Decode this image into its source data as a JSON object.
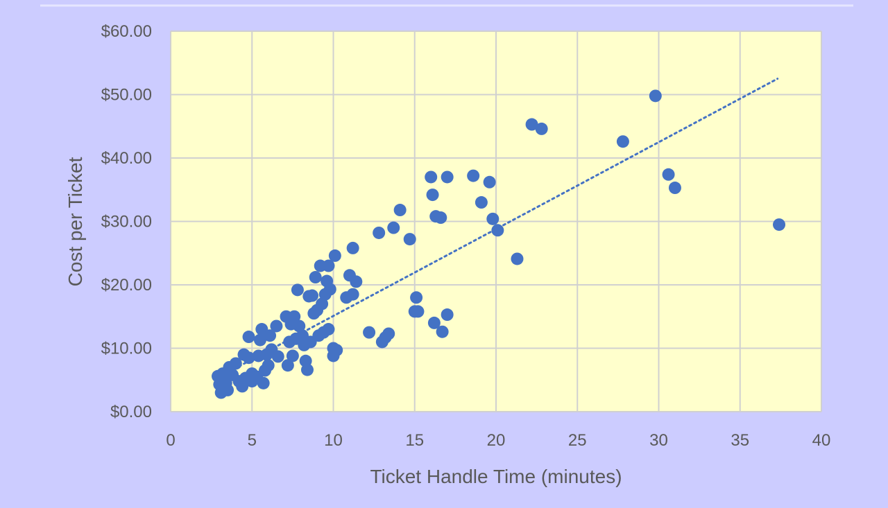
{
  "chart_data": {
    "type": "scatter",
    "title": "",
    "xlabel": "Ticket Handle Time (minutes)",
    "ylabel": "Cost per Ticket",
    "xlim": [
      0,
      40
    ],
    "ylim": [
      0,
      60
    ],
    "x_ticks": [
      "0",
      "5",
      "10",
      "15",
      "20",
      "25",
      "30",
      "35",
      "40"
    ],
    "y_ticks": [
      "$0.00",
      "$10.00",
      "$20.00",
      "$30.00",
      "$40.00",
      "$50.00",
      "$60.00"
    ],
    "grid": true,
    "legend": "none",
    "trendline": {
      "type": "linear",
      "style": "dotted",
      "x_start": 3.0,
      "y_start": 5.5,
      "x_end": 37.3,
      "y_end": 52.5
    },
    "colors": {
      "background": "#ccccff",
      "plot_area": "#ffffcc",
      "grid": "#d0d0d0",
      "marker": "#4472c4",
      "text": "#595959"
    },
    "series": [
      {
        "points": [
          [
            2.9,
            5.6
          ],
          [
            3.0,
            4.3
          ],
          [
            3.1,
            3.0
          ],
          [
            3.2,
            6.0
          ],
          [
            3.3,
            5.0
          ],
          [
            3.4,
            4.5
          ],
          [
            3.5,
            3.4
          ],
          [
            3.6,
            7.0
          ],
          [
            3.8,
            5.8
          ],
          [
            4.0,
            7.6
          ],
          [
            4.2,
            4.8
          ],
          [
            4.4,
            4.0
          ],
          [
            4.5,
            9.0
          ],
          [
            4.6,
            5.3
          ],
          [
            4.8,
            8.5
          ],
          [
            4.8,
            11.8
          ],
          [
            5.0,
            6.0
          ],
          [
            5.0,
            4.8
          ],
          [
            5.3,
            5.5
          ],
          [
            5.4,
            8.8
          ],
          [
            5.5,
            11.3
          ],
          [
            5.6,
            13.0
          ],
          [
            5.7,
            4.5
          ],
          [
            5.8,
            6.5
          ],
          [
            5.9,
            9.0
          ],
          [
            6.0,
            7.3
          ],
          [
            6.1,
            12.0
          ],
          [
            6.2,
            9.8
          ],
          [
            6.5,
            13.5
          ],
          [
            6.6,
            8.7
          ],
          [
            7.1,
            15.0
          ],
          [
            7.2,
            7.3
          ],
          [
            7.3,
            11.0
          ],
          [
            7.4,
            13.8
          ],
          [
            7.5,
            8.8
          ],
          [
            7.6,
            15.0
          ],
          [
            7.7,
            11.5
          ],
          [
            7.8,
            19.2
          ],
          [
            7.9,
            13.5
          ],
          [
            8.1,
            12.0
          ],
          [
            8.2,
            10.5
          ],
          [
            8.3,
            8.0
          ],
          [
            8.4,
            6.6
          ],
          [
            8.5,
            18.2
          ],
          [
            8.6,
            11.0
          ],
          [
            8.7,
            18.3
          ],
          [
            8.8,
            15.5
          ],
          [
            8.9,
            21.2
          ],
          [
            9.0,
            16.0
          ],
          [
            9.1,
            12.0
          ],
          [
            9.2,
            23.0
          ],
          [
            9.3,
            17.0
          ],
          [
            9.4,
            12.5
          ],
          [
            9.5,
            18.5
          ],
          [
            9.6,
            20.6
          ],
          [
            9.7,
            23.0
          ],
          [
            9.7,
            13.0
          ],
          [
            9.8,
            19.3
          ],
          [
            10.0,
            10.0
          ],
          [
            10.0,
            8.8
          ],
          [
            10.1,
            24.6
          ],
          [
            10.2,
            9.7
          ],
          [
            10.8,
            18.0
          ],
          [
            11.0,
            21.5
          ],
          [
            11.2,
            18.5
          ],
          [
            11.2,
            25.8
          ],
          [
            11.4,
            20.5
          ],
          [
            12.2,
            12.5
          ],
          [
            12.8,
            28.2
          ],
          [
            13.0,
            11.0
          ],
          [
            13.2,
            11.7
          ],
          [
            13.4,
            12.3
          ],
          [
            13.7,
            29.0
          ],
          [
            14.1,
            31.8
          ],
          [
            14.7,
            27.2
          ],
          [
            15.0,
            15.8
          ],
          [
            15.1,
            18.0
          ],
          [
            15.2,
            15.8
          ],
          [
            16.0,
            37.0
          ],
          [
            16.1,
            34.2
          ],
          [
            16.2,
            14.0
          ],
          [
            16.3,
            30.8
          ],
          [
            16.6,
            30.6
          ],
          [
            16.7,
            12.6
          ],
          [
            17.0,
            37.0
          ],
          [
            17.0,
            15.3
          ],
          [
            18.6,
            37.2
          ],
          [
            19.1,
            33.0
          ],
          [
            19.6,
            36.2
          ],
          [
            19.8,
            30.4
          ],
          [
            20.1,
            28.6
          ],
          [
            21.3,
            24.1
          ],
          [
            22.2,
            45.3
          ],
          [
            22.8,
            44.6
          ],
          [
            27.8,
            42.6
          ],
          [
            29.8,
            49.8
          ],
          [
            30.6,
            37.4
          ],
          [
            31.0,
            35.3
          ],
          [
            37.4,
            29.5
          ]
        ]
      }
    ]
  }
}
